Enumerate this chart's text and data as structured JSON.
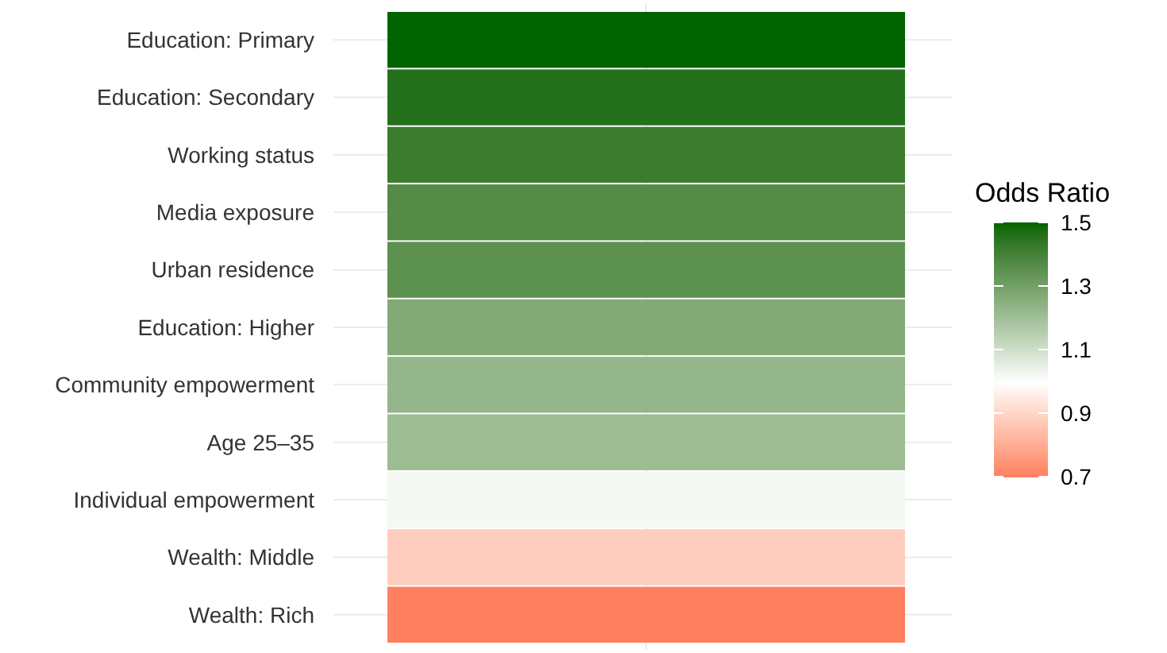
{
  "chart_data": {
    "type": "heatmap",
    "categories": [
      null
    ],
    "y_categories": [
      "Education: Primary",
      "Education: Secondary",
      "Working status",
      "Media exposure",
      "Urban residence",
      "Education: Higher",
      "Community empowerment",
      "Age 25–35",
      "Individual empowerment",
      "Wealth: Middle",
      "Wealth: Rich"
    ],
    "cells": [
      [
        1.5
      ],
      [
        1.46
      ],
      [
        1.42
      ],
      [
        1.37
      ],
      [
        1.35
      ],
      [
        1.27
      ],
      [
        1.23
      ],
      [
        1.21
      ],
      [
        1.02
      ],
      [
        0.88
      ],
      [
        0.7
      ]
    ],
    "clabel": "Odds Ratio",
    "clim": [
      0.7,
      1.5
    ],
    "cticks": [
      0.7,
      0.9,
      1.1,
      1.3,
      1.5
    ],
    "grid": true
  }
}
